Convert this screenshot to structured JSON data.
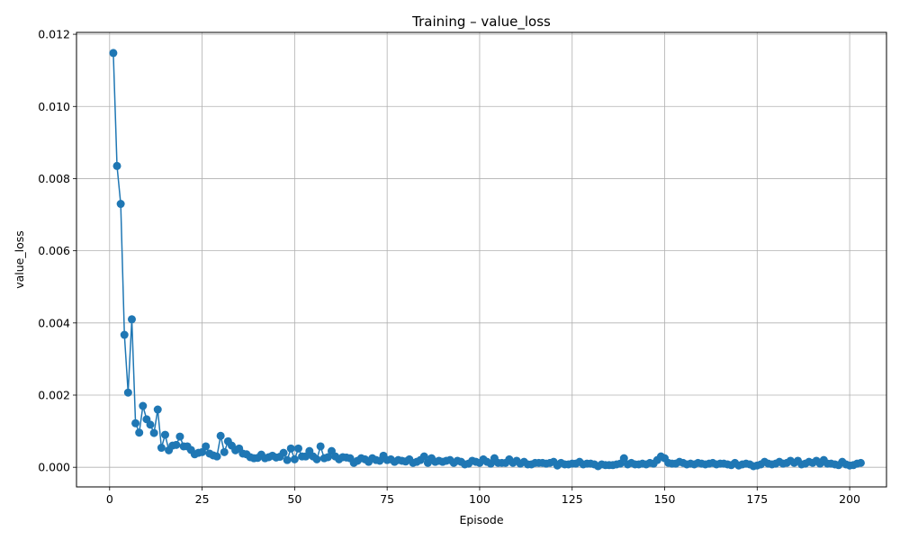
{
  "chart_data": {
    "type": "line",
    "title": "Training – value_loss",
    "xlabel": "Episode",
    "ylabel": "value_loss",
    "xlim": [
      -8.95,
      209.95
    ],
    "ylim": [
      -0.000544,
      0.012052
    ],
    "x_ticks": [
      0,
      25,
      50,
      75,
      100,
      125,
      150,
      175,
      200
    ],
    "y_ticks": [
      0.0,
      0.002,
      0.004,
      0.006,
      0.008,
      0.01,
      0.012
    ],
    "y_tick_labels": [
      "0.000",
      "0.002",
      "0.004",
      "0.006",
      "0.008",
      "0.010",
      "0.012"
    ],
    "grid": true,
    "color": "#1f77b4",
    "series": [
      {
        "x_start": 1,
        "x_step": 1,
        "values": [
          0.01148,
          0.00835,
          0.0073,
          0.00367,
          0.00207,
          0.0041,
          0.00122,
          0.00096,
          0.0017,
          0.00133,
          0.00118,
          0.00095,
          0.0016,
          0.00054,
          0.0009,
          0.00047,
          0.0006,
          0.00062,
          0.00085,
          0.00058,
          0.00058,
          0.00048,
          0.00036,
          0.0004,
          0.00042,
          0.00058,
          0.00038,
          0.00033,
          0.0003,
          0.00087,
          0.00042,
          0.00072,
          0.0006,
          0.00047,
          0.00052,
          0.00038,
          0.00036,
          0.00028,
          0.00025,
          0.00026,
          0.00035,
          0.00025,
          0.00028,
          0.00032,
          0.00027,
          0.00029,
          0.0004,
          0.0002,
          0.00052,
          0.00022,
          0.00052,
          0.0003,
          0.0003,
          0.00045,
          0.0003,
          0.00022,
          0.00058,
          0.00025,
          0.00028,
          0.00045,
          0.0003,
          0.00022,
          0.00028,
          0.00027,
          0.00025,
          0.00012,
          0.00018,
          0.00025,
          0.00022,
          0.00015,
          0.00025,
          0.0002,
          0.00018,
          0.00032,
          0.0002,
          0.00022,
          0.00015,
          0.0002,
          0.00018,
          0.00016,
          0.00022,
          0.00012,
          0.00015,
          0.0002,
          0.0003,
          0.00012,
          0.00025,
          0.00015,
          0.00018,
          0.00015,
          0.00018,
          0.0002,
          0.00012,
          0.00018,
          0.00015,
          8e-05,
          0.0001,
          0.00018,
          0.00015,
          0.00012,
          0.00022,
          0.00015,
          0.0001,
          0.00025,
          0.00012,
          0.00012,
          0.00012,
          0.00022,
          0.00012,
          0.00018,
          0.0001,
          0.00015,
          8e-05,
          8e-05,
          0.00012,
          0.00012,
          0.00012,
          0.0001,
          0.00012,
          0.00015,
          5e-05,
          0.00012,
          8e-05,
          8e-05,
          0.0001,
          0.0001,
          0.00015,
          8e-05,
          0.0001,
          0.0001,
          8e-05,
          3e-05,
          8e-05,
          6e-05,
          6e-05,
          6e-05,
          8e-05,
          0.0001,
          0.00025,
          8e-05,
          0.00012,
          8e-05,
          8e-05,
          0.0001,
          8e-05,
          0.00012,
          0.0001,
          0.0002,
          0.0003,
          0.00025,
          0.00012,
          0.0001,
          0.0001,
          0.00015,
          0.00012,
          8e-05,
          0.0001,
          8e-05,
          0.00012,
          0.0001,
          8e-05,
          0.0001,
          0.00012,
          8e-05,
          0.0001,
          0.0001,
          8e-05,
          6e-05,
          0.00012,
          5e-05,
          8e-05,
          0.0001,
          8e-05,
          3e-05,
          5e-05,
          8e-05,
          0.00015,
          0.0001,
          8e-05,
          0.0001,
          0.00015,
          0.0001,
          0.00012,
          0.00018,
          0.00012,
          0.00018,
          8e-05,
          0.0001,
          0.00015,
          0.00012,
          0.00018,
          0.0001,
          0.0002,
          0.0001,
          0.0001,
          8e-05,
          6e-05,
          0.00015,
          8e-05,
          5e-05,
          6e-05,
          0.0001,
          0.00012
        ]
      }
    ]
  }
}
